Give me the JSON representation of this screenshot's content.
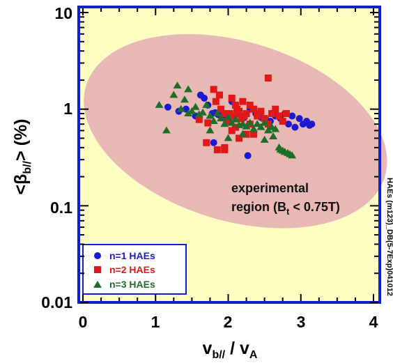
{
  "chart_data": {
    "type": "scatter",
    "xlabel_main": "v",
    "xlabel_sub": "b//",
    "xlabel_mid": " / v",
    "xlabel_sub2": "A",
    "ylabel_main": "<β",
    "ylabel_sub": "b//",
    "ylabel_end": "> (%)",
    "xlim": [
      0,
      4
    ],
    "ylim": [
      0.01,
      10
    ],
    "yscale": "log",
    "x_ticks": [
      "0",
      "1",
      "2",
      "3",
      "4"
    ],
    "y_ticks": [
      "0.01",
      "0.1",
      "1",
      "10"
    ],
    "annotation_line1": "experimental",
    "annotation_line2_a": "region (B",
    "annotation_line2_sub": "t",
    "annotation_line2_b": " < 0.75T)",
    "side_label": "HAEs (m123)_DB(5-7Exp)041012",
    "legend_position": "bottom-left",
    "region": {
      "x_range": [
        -0.05,
        4.25
      ],
      "y_range": [
        0.07,
        5.0
      ]
    },
    "colors": {
      "background": "#FFFFC3",
      "region": "#E8B8B4",
      "frame": "#1020D0"
    },
    "series": [
      {
        "name": "n=1 HAEs",
        "color": "#1A1AD0",
        "marker": "circle",
        "x": [
          1.17,
          1.32,
          1.42,
          1.55,
          1.62,
          1.67,
          1.72,
          1.78,
          1.82,
          1.86,
          1.9,
          1.95,
          2.0,
          2.05,
          2.12,
          2.18,
          2.22,
          2.3,
          2.38,
          2.45,
          2.52,
          2.58,
          2.65,
          2.72,
          2.78,
          2.83,
          2.88,
          2.92,
          2.98,
          3.03,
          3.08,
          3.12,
          3.15,
          1.8,
          2.27
        ],
        "y": [
          1.05,
          0.95,
          1.0,
          0.85,
          1.4,
          1.3,
          1.1,
          0.9,
          0.92,
          0.88,
          0.85,
          0.8,
          0.78,
          1.2,
          0.9,
          0.85,
          0.82,
          1.0,
          0.9,
          0.82,
          0.78,
          0.75,
          0.85,
          0.8,
          0.9,
          0.7,
          0.85,
          0.65,
          0.8,
          0.7,
          0.75,
          0.68,
          0.7,
          0.45,
          0.33
        ]
      },
      {
        "name": "n=2 HAEs",
        "color": "#E01818",
        "marker": "square",
        "x": [
          1.6,
          1.72,
          1.8,
          1.83,
          1.88,
          1.9,
          1.95,
          1.98,
          2.02,
          2.05,
          2.08,
          2.1,
          2.12,
          2.15,
          2.18,
          2.2,
          2.22,
          2.25,
          2.3,
          2.35,
          2.4,
          2.45,
          2.5,
          2.55,
          2.6,
          2.65,
          2.7,
          2.75,
          2.8,
          1.85,
          1.95,
          2.05,
          2.15,
          2.25,
          2.35,
          2.55,
          1.7,
          1.95,
          2.1,
          2.3
        ],
        "y": [
          0.78,
          0.72,
          1.6,
          1.2,
          1.4,
          1.0,
          0.9,
          0.75,
          0.9,
          1.3,
          0.85,
          1.1,
          1.0,
          0.95,
          0.8,
          1.2,
          0.85,
          0.9,
          1.1,
          1.0,
          0.85,
          0.95,
          0.8,
          2.1,
          0.9,
          1.0,
          0.85,
          0.75,
          0.9,
          0.38,
          0.38,
          0.6,
          0.5,
          0.55,
          0.55,
          0.7,
          0.45,
          0.4,
          0.65,
          0.7
        ]
      },
      {
        "name": "n=3 HAEs",
        "color": "#1E6E2A",
        "marker": "triangle",
        "x": [
          1.05,
          1.15,
          1.25,
          1.3,
          1.35,
          1.4,
          1.45,
          1.5,
          1.55,
          1.6,
          1.65,
          1.7,
          1.75,
          1.8,
          1.85,
          1.9,
          1.95,
          2.0,
          2.05,
          2.1,
          2.15,
          2.2,
          2.25,
          2.3,
          2.35,
          2.4,
          2.45,
          2.5,
          2.55,
          2.6,
          2.65,
          2.7,
          2.72,
          2.75,
          2.78,
          2.82,
          2.85,
          2.88,
          1.45,
          1.75,
          2.0,
          2.2,
          2.5,
          2.62
        ],
        "y": [
          1.1,
          0.6,
          1.4,
          1.75,
          1.0,
          1.25,
          0.9,
          0.95,
          1.05,
          0.88,
          0.92,
          1.1,
          0.85,
          0.75,
          0.9,
          0.8,
          0.7,
          0.82,
          0.72,
          0.78,
          0.68,
          0.7,
          0.66,
          0.72,
          0.62,
          0.7,
          0.65,
          0.72,
          0.6,
          0.65,
          0.62,
          0.4,
          0.38,
          0.37,
          0.36,
          0.35,
          0.34,
          0.33,
          1.6,
          0.6,
          0.5,
          0.55,
          0.48,
          0.52
        ]
      }
    ]
  }
}
